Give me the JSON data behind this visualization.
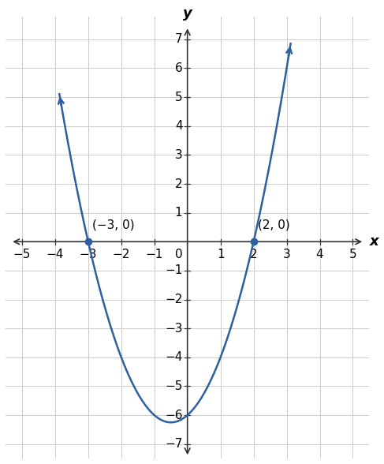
{
  "title": "",
  "xlabel": "x",
  "ylabel": "y",
  "xlim": [
    -5.5,
    5.5
  ],
  "ylim": [
    -7.5,
    7.8
  ],
  "xlim_display": [
    -5,
    5
  ],
  "ylim_display": [
    -7,
    7
  ],
  "xticks": [
    -5,
    -4,
    -3,
    -2,
    -1,
    1,
    2,
    3,
    4,
    5
  ],
  "yticks": [
    -7,
    -6,
    -5,
    -4,
    -3,
    -2,
    -1,
    1,
    2,
    3,
    4,
    5,
    6,
    7
  ],
  "curve_color": "#2E5F9E",
  "curve_linewidth": 1.8,
  "point1": [
    -3,
    0
  ],
  "point2": [
    2,
    0
  ],
  "point_label1": "(−3, 0)",
  "point_label2": "(2, 0)",
  "point_color": "#2E5F9E",
  "point_size": 6,
  "background_color": "#ffffff",
  "grid_color": "#cccccc",
  "axis_color": "#333333",
  "x_curve_start": -3.87,
  "x_curve_end": 3.12,
  "font_size_labels": 11,
  "font_size_axis_labels": 13,
  "tick_fontsize": 11,
  "axis_linewidth": 1.2,
  "grid_linewidth": 0.7
}
